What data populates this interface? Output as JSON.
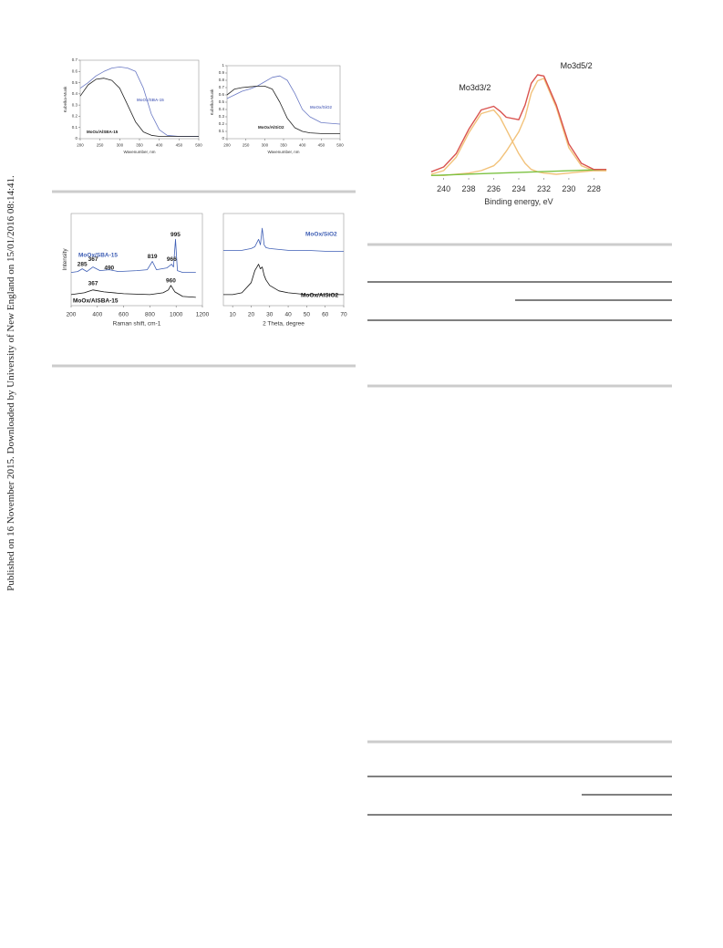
{
  "margin_note": "Published on 16 November 2015. Downloaded by University of New England on 15/01/2016 08:14:41.",
  "chart_data": [
    {
      "type": "line",
      "xlabel": "Wavenumber, nm",
      "ylabel": "Kubelka-Munk",
      "xlim": [
        200,
        500
      ],
      "ylim": [
        0,
        0.7
      ],
      "xticks": [
        200,
        250,
        300,
        350,
        400,
        450,
        500
      ],
      "yticks": [
        0,
        0.1,
        0.2,
        0.3,
        0.4,
        0.5,
        0.6,
        0.7
      ],
      "series": [
        {
          "name": "MoOx/SBA-15",
          "color": "#6a79c4",
          "x": [
            200,
            220,
            240,
            260,
            280,
            300,
            320,
            340,
            360,
            380,
            400,
            420,
            450,
            500
          ],
          "values": [
            0.45,
            0.5,
            0.56,
            0.6,
            0.63,
            0.64,
            0.63,
            0.6,
            0.45,
            0.22,
            0.08,
            0.03,
            0.02,
            0.02
          ]
        },
        {
          "name": "MoOx/AlSBA-15",
          "color": "#222222",
          "x": [
            200,
            220,
            240,
            260,
            280,
            300,
            320,
            340,
            360,
            380,
            400,
            420,
            450,
            500
          ],
          "values": [
            0.38,
            0.48,
            0.53,
            0.54,
            0.52,
            0.45,
            0.3,
            0.15,
            0.06,
            0.03,
            0.02,
            0.02,
            0.02,
            0.02
          ]
        }
      ]
    },
    {
      "type": "line",
      "xlabel": "Wavenumber, nm",
      "ylabel": "Kubelka-Munk",
      "xlim": [
        200,
        500
      ],
      "ylim": [
        0,
        1
      ],
      "xticks": [
        200,
        250,
        300,
        350,
        400,
        450,
        500
      ],
      "yticks": [
        0,
        0.1,
        0.2,
        0.3,
        0.4,
        0.5,
        0.6,
        0.7,
        0.8,
        0.9,
        1
      ],
      "series": [
        {
          "name": "MoOx/SiO2",
          "color": "#6a79c4",
          "x": [
            200,
            220,
            240,
            260,
            280,
            300,
            320,
            340,
            360,
            380,
            400,
            420,
            450,
            500
          ],
          "values": [
            0.55,
            0.6,
            0.65,
            0.68,
            0.72,
            0.78,
            0.84,
            0.86,
            0.8,
            0.62,
            0.4,
            0.3,
            0.22,
            0.2
          ]
        },
        {
          "name": "MoOx/AlSiO2",
          "color": "#222222",
          "x": [
            200,
            220,
            240,
            260,
            280,
            300,
            320,
            340,
            360,
            380,
            400,
            420,
            450,
            500
          ],
          "values": [
            0.6,
            0.68,
            0.7,
            0.71,
            0.72,
            0.72,
            0.68,
            0.5,
            0.28,
            0.15,
            0.1,
            0.08,
            0.07,
            0.07
          ]
        }
      ]
    },
    {
      "type": "line",
      "xlabel": "Raman shift, cm-1",
      "ylabel": "Intensity",
      "xlim": [
        200,
        1200
      ],
      "ylim": [
        0,
        1
      ],
      "xticks": [
        200,
        400,
        600,
        800,
        1000,
        1200
      ],
      "series": [
        {
          "name": "MoOx/SBA-15",
          "color": "#3f5fb5",
          "x": [
            200,
            250,
            285,
            320,
            367,
            420,
            490,
            560,
            700,
            780,
            819,
            850,
            930,
            966,
            980,
            995,
            1010,
            1050,
            1150
          ],
          "values": [
            0.36,
            0.37,
            0.4,
            0.37,
            0.42,
            0.38,
            0.39,
            0.37,
            0.38,
            0.39,
            0.48,
            0.39,
            0.41,
            0.45,
            0.42,
            0.72,
            0.38,
            0.36,
            0.36
          ]
        },
        {
          "name": "MoOx/AlSBA-15",
          "color": "#111111",
          "x": [
            200,
            300,
            367,
            450,
            600,
            800,
            900,
            940,
            960,
            990,
            1050,
            1150
          ],
          "values": [
            0.12,
            0.14,
            0.17,
            0.15,
            0.13,
            0.12,
            0.14,
            0.17,
            0.22,
            0.15,
            0.1,
            0.09
          ]
        }
      ],
      "annotations": [
        {
          "text": "285",
          "x": 285,
          "y": 0.45
        },
        {
          "text": "367",
          "x": 367,
          "y": 0.5
        },
        {
          "text": "490",
          "x": 490,
          "y": 0.41
        },
        {
          "text": "819",
          "x": 819,
          "y": 0.53
        },
        {
          "text": "966",
          "x": 966,
          "y": 0.5
        },
        {
          "text": "995",
          "x": 995,
          "y": 0.77
        },
        {
          "text": "367",
          "x": 367,
          "y": 0.24
        },
        {
          "text": "960",
          "x": 960,
          "y": 0.27
        }
      ]
    },
    {
      "type": "line",
      "xlabel": "2 Theta, degree",
      "xlim": [
        5,
        70
      ],
      "ylim": [
        0,
        1
      ],
      "xticks": [
        10,
        20,
        30,
        40,
        50,
        60,
        70
      ],
      "series": [
        {
          "name": "MoOx/SiO2",
          "color": "#3f5fb5",
          "x": [
            5,
            10,
            15,
            20,
            22,
            24,
            25,
            26,
            27,
            28,
            30,
            35,
            40,
            50,
            60,
            70
          ],
          "values": [
            0.6,
            0.6,
            0.6,
            0.62,
            0.64,
            0.72,
            0.66,
            0.84,
            0.66,
            0.63,
            0.62,
            0.61,
            0.6,
            0.6,
            0.59,
            0.59
          ]
        },
        {
          "name": "MoOx/AlSiO2",
          "color": "#111111",
          "x": [
            5,
            10,
            15,
            20,
            22,
            24,
            25,
            26,
            27,
            28,
            30,
            35,
            40,
            50,
            60,
            70
          ],
          "values": [
            0.12,
            0.12,
            0.14,
            0.25,
            0.38,
            0.45,
            0.4,
            0.42,
            0.33,
            0.28,
            0.22,
            0.16,
            0.14,
            0.12,
            0.12,
            0.12
          ]
        }
      ]
    },
    {
      "type": "line",
      "xlabel": "Binding energy, eV",
      "xlim": [
        241.5,
        226.5
      ],
      "ylim": [
        0,
        1
      ],
      "xticks": [
        240,
        238,
        236,
        234,
        232,
        230,
        228
      ],
      "series": [
        {
          "color": "#f2c27a",
          "x": [
            241,
            240,
            239,
            238,
            237,
            236,
            235.5,
            235,
            234,
            233.5,
            233,
            232.5,
            232,
            231,
            230,
            229,
            228,
            227
          ],
          "values": [
            0.03,
            0.06,
            0.17,
            0.37,
            0.53,
            0.56,
            0.5,
            0.4,
            0.2,
            0.12,
            0.07,
            0.05,
            0.04,
            0.03,
            0.04,
            0.05,
            0.06,
            0.06
          ]
        },
        {
          "color": "#f2c27a",
          "x": [
            241,
            240,
            239,
            238,
            237,
            236,
            235.5,
            235,
            234,
            233.5,
            233,
            232.5,
            232,
            231,
            230,
            229,
            228,
            227
          ],
          "values": [
            0.02,
            0.02,
            0.03,
            0.04,
            0.06,
            0.1,
            0.15,
            0.22,
            0.38,
            0.5,
            0.7,
            0.8,
            0.82,
            0.58,
            0.25,
            0.1,
            0.06,
            0.06
          ]
        },
        {
          "color": "#7cc242",
          "x": [
            241,
            227
          ],
          "values": [
            0.02,
            0.07
          ]
        },
        {
          "color": "#d9534f",
          "x": [
            241,
            240,
            239,
            238,
            237,
            236,
            235.5,
            235,
            234,
            233.5,
            233,
            232.5,
            232,
            231,
            230,
            229,
            228,
            227
          ],
          "values": [
            0.05,
            0.09,
            0.2,
            0.4,
            0.56,
            0.59,
            0.55,
            0.5,
            0.48,
            0.6,
            0.78,
            0.85,
            0.84,
            0.6,
            0.28,
            0.12,
            0.07,
            0.07
          ]
        }
      ],
      "annotations": [
        {
          "text": "Mo3d3/2",
          "x": 237.5,
          "y": 0.74
        },
        {
          "text": "Mo3d5/2",
          "x": 229.4,
          "y": 0.92
        }
      ]
    }
  ]
}
